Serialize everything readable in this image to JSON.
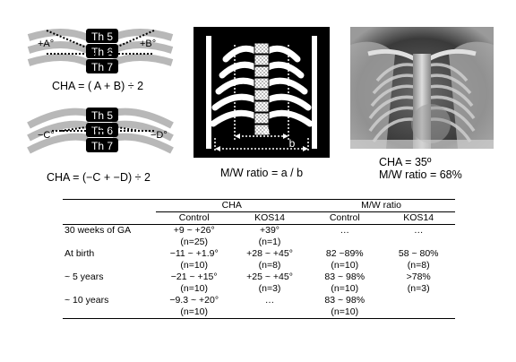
{
  "diagram1": {
    "vertebrae": [
      "Th 5",
      "Th 6",
      "Th 7"
    ],
    "angle_left": "+A°",
    "angle_right": "+B°",
    "caption": "CHA = ( A + B) ÷ 2"
  },
  "diagram2": {
    "vertebrae": [
      "Th 5",
      "Th 6",
      "Th 7"
    ],
    "angle_left": "−C°",
    "angle_right": "−D°",
    "caption": "CHA = (−C + −D) ÷ 2"
  },
  "diagram3": {
    "label_a": "a",
    "label_b": "b",
    "caption": "M/W ratio = a / b"
  },
  "xray": {
    "caption_line1": "CHA = 35º",
    "caption_line2": "M/W ratio = 68%"
  },
  "table": {
    "group_headers": [
      "CHA",
      "M/W ratio"
    ],
    "sub_headers": [
      "Control",
      "KOS14",
      "Control",
      "KOS14"
    ],
    "rows": [
      {
        "label": "30 weeks of GA",
        "main": [
          "+9 ~ +26°",
          "+39°",
          "…",
          "…"
        ],
        "n": [
          "(n=25)",
          "(n=1)",
          "",
          ""
        ]
      },
      {
        "label": "At birth",
        "main": [
          "−11 ~ +1.9°",
          "+28 ~ +45°",
          "82 ~89%",
          "58 ~ 80%"
        ],
        "n": [
          "(n=10)",
          "(n=8)",
          "(n=10)",
          "(n=8)"
        ]
      },
      {
        "label": "~ 5 years",
        "main": [
          "−21 ~ +15°",
          "+25 ~ +45°",
          "83 ~ 98%",
          ">78%"
        ],
        "n": [
          "(n=10)",
          "(n=3)",
          "(n=10)",
          "(n=3)"
        ]
      },
      {
        "label": "~ 10 years",
        "main": [
          "−9.3 ~ +20°",
          "…",
          "83 ~ 98%",
          ""
        ],
        "n": [
          "(n=10)",
          "",
          "(n=10)",
          ""
        ]
      }
    ]
  }
}
